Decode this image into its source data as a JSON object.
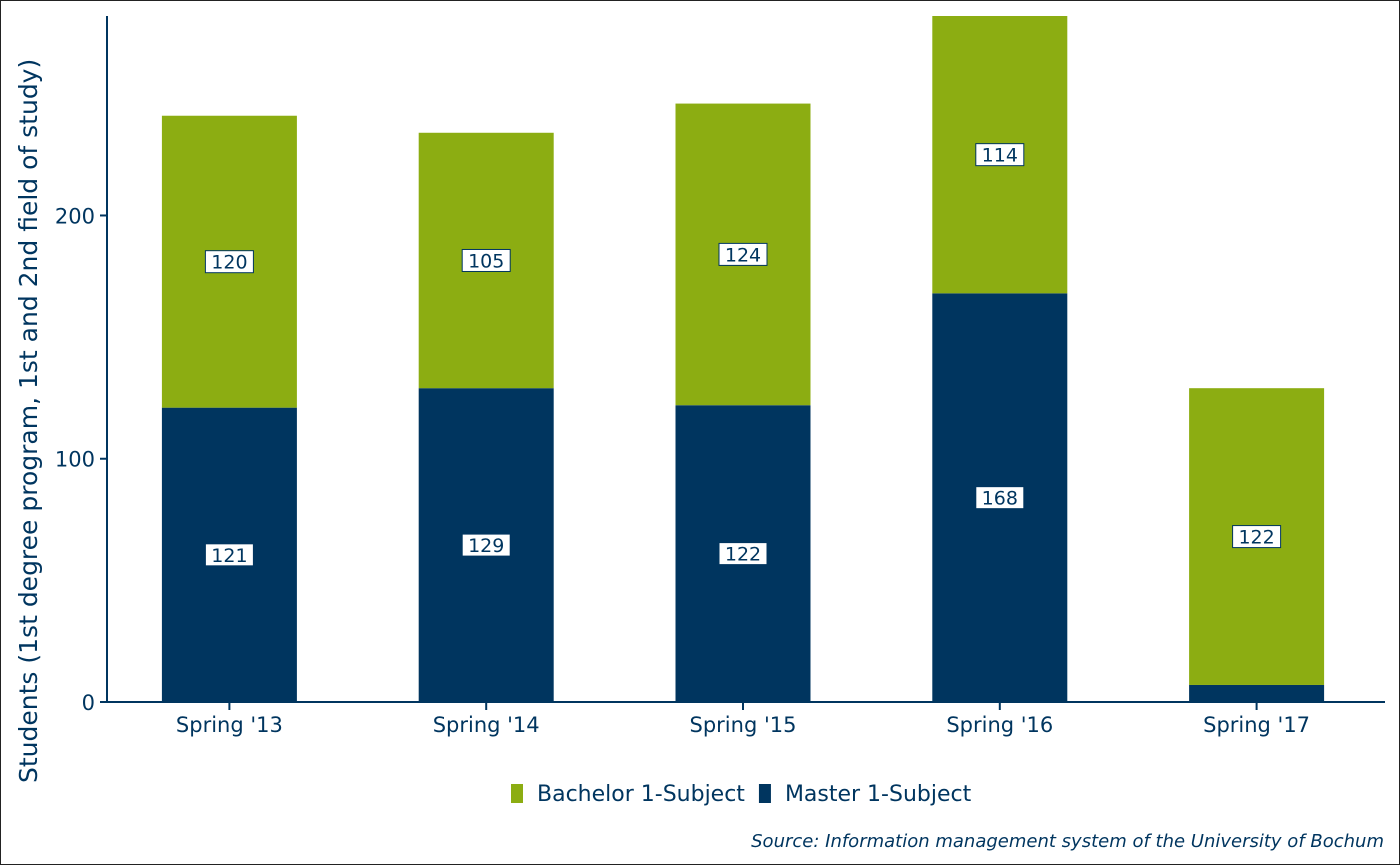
{
  "chart_data": {
    "type": "bar",
    "stacked": true,
    "categories": [
      "Spring '13",
      "Spring '14",
      "Spring '15",
      "Spring '16",
      "Spring '17"
    ],
    "series": [
      {
        "name": "Master 1-Subject",
        "color": "#00355f",
        "values": [
          121,
          129,
          122,
          168,
          7
        ],
        "labels": [
          "121",
          "129",
          "122",
          "168",
          null
        ]
      },
      {
        "name": "Bachelor 1-Subject",
        "color": "#8cad12",
        "values": [
          120,
          105,
          124,
          114,
          122
        ],
        "labels": [
          "120",
          "105",
          "124",
          "114",
          "122"
        ]
      }
    ],
    "ylabel": "Students (1st degree program, 1st and 2nd field of study)",
    "xlabel": "",
    "ylim": [
      0,
      282
    ],
    "yticks": [
      0,
      100,
      200
    ],
    "legend_position": "bottom",
    "legend_order": [
      "Bachelor 1-Subject",
      "Master 1-Subject"
    ],
    "caption": "Source: Information management system of the University of Bochum",
    "axis_color": "#00355f",
    "text_color": "#00355f"
  }
}
